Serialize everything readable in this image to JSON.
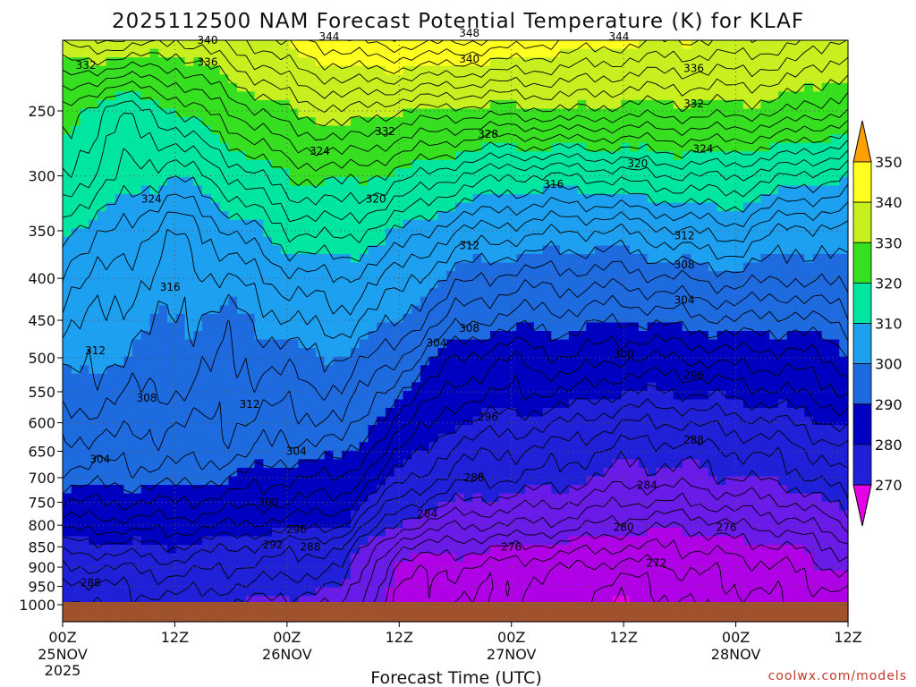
{
  "chart_data": {
    "type": "heatmap",
    "title": "2025112500 NAM Forecast Potential Temperature (K) for KLAF",
    "xlabel": "Forecast Time (UTC)",
    "ylabel": "",
    "credit": "coolwx.com/models",
    "y_axis": {
      "scale": "log-pressure",
      "ticks": [
        "250",
        "300",
        "350",
        "400",
        "450",
        "500",
        "550",
        "600",
        "650",
        "700",
        "750",
        "800",
        "850",
        "900",
        "950",
        "1000"
      ]
    },
    "x_axis": {
      "ticks": [
        {
          "hours": 0,
          "line1": "00Z",
          "line2": "25NOV",
          "line3": "2025"
        },
        {
          "hours": 12,
          "line1": "12Z",
          "line2": "",
          "line3": ""
        },
        {
          "hours": 24,
          "line1": "00Z",
          "line2": "26NOV",
          "line3": ""
        },
        {
          "hours": 36,
          "line1": "12Z",
          "line2": "",
          "line3": ""
        },
        {
          "hours": 48,
          "line1": "00Z",
          "line2": "27NOV",
          "line3": ""
        },
        {
          "hours": 60,
          "line1": "12Z",
          "line2": "",
          "line3": ""
        },
        {
          "hours": 72,
          "line1": "00Z",
          "line2": "28NOV",
          "line3": ""
        },
        {
          "hours": 84,
          "line1": "12Z",
          "line2": "",
          "line3": ""
        }
      ]
    },
    "colorbar": {
      "levels": [
        "270",
        "280",
        "290",
        "300",
        "310",
        "320",
        "330",
        "340",
        "350"
      ],
      "colors": [
        "#e600e6",
        "#b000e6",
        "#6a1be8",
        "#2020d8",
        "#0000c0",
        "#1e6be0",
        "#1ea0f0",
        "#00e6a0",
        "#36e020",
        "#c8f020",
        "#ffff20",
        "#ffa000"
      ]
    },
    "surface_color": "#a0522d",
    "field": {
      "description": "potential temperature (K) at pressure levels over forecast hours",
      "hours": [
        0,
        6,
        12,
        18,
        24,
        30,
        36,
        42,
        48,
        54,
        60,
        66,
        72,
        78,
        84
      ],
      "pressures": [
        200,
        250,
        300,
        350,
        400,
        450,
        500,
        550,
        600,
        650,
        700,
        750,
        800,
        850,
        900,
        950,
        1000
      ],
      "theta": [
        [
          338,
          340,
          337,
          340,
          344,
          347,
          349,
          348,
          347,
          345,
          344,
          343,
          343,
          342,
          338
        ],
        [
          328,
          322,
          326,
          330,
          334,
          336,
          334,
          333,
          333,
          334,
          333,
          333,
          333,
          332,
          330
        ],
        [
          324,
          320,
          318,
          322,
          326,
          327,
          325,
          322,
          320,
          320,
          321,
          322,
          322,
          320,
          318
        ],
        [
          318,
          316,
          312,
          316,
          320,
          321,
          318,
          314,
          313,
          312,
          312,
          314,
          315,
          311,
          312
        ],
        [
          315,
          313,
          311,
          312,
          315,
          316,
          313,
          309,
          307,
          307,
          307,
          308,
          309,
          308,
          309
        ],
        [
          313,
          311,
          310,
          309,
          312,
          313,
          310,
          305,
          303,
          303,
          302,
          303,
          304,
          303,
          305
        ],
        [
          311,
          310,
          309,
          308,
          309,
          310,
          306,
          300,
          298,
          300,
          298,
          298,
          299,
          299,
          301
        ],
        [
          310,
          308,
          308,
          307,
          307,
          308,
          302,
          297,
          296,
          296,
          294,
          294,
          295,
          296,
          298
        ],
        [
          307,
          307,
          306,
          306,
          305,
          306,
          299,
          294,
          293,
          292,
          290,
          290,
          291,
          292,
          295
        ],
        [
          305,
          305,
          305,
          305,
          303,
          303,
          296,
          291,
          290,
          289,
          287,
          287,
          288,
          289,
          292
        ],
        [
          303,
          303,
          303,
          302,
          300,
          300,
          293,
          289,
          288,
          287,
          285,
          285,
          286,
          287,
          290
        ],
        [
          300,
          300,
          300,
          299,
          298,
          297,
          289,
          286,
          285,
          284,
          282,
          282,
          283,
          284,
          287
        ],
        [
          297,
          297,
          297,
          296,
          295,
          294,
          285,
          282,
          282,
          281,
          279,
          278,
          280,
          281,
          284
        ],
        [
          293,
          293,
          294,
          292,
          291,
          290,
          280,
          279,
          278,
          277,
          276,
          276,
          277,
          278,
          281
        ],
        [
          290,
          290,
          291,
          290,
          289,
          288,
          277,
          276,
          275,
          274,
          273,
          274,
          275,
          276,
          279
        ],
        [
          287,
          288,
          289,
          288,
          287,
          286,
          276,
          275,
          274,
          273,
          271,
          273,
          274,
          275,
          277
        ],
        [
          285,
          287,
          287,
          286,
          285,
          284,
          276,
          274,
          274,
          273,
          270,
          272,
          273,
          274,
          275
        ]
      ]
    },
    "contour_labels": [
      {
        "text": "340",
        "hours": 15.5,
        "p": 205
      },
      {
        "text": "344",
        "hours": 28.5,
        "p": 203
      },
      {
        "text": "348",
        "hours": 43.5,
        "p": 201
      },
      {
        "text": "344",
        "hours": 59.5,
        "p": 203
      },
      {
        "text": "336",
        "hours": 15.5,
        "p": 218
      },
      {
        "text": "340",
        "hours": 43.5,
        "p": 216
      },
      {
        "text": "336",
        "hours": 67.5,
        "p": 222
      },
      {
        "text": "332",
        "hours": 2.5,
        "p": 220
      },
      {
        "text": "332",
        "hours": 67.5,
        "p": 245
      },
      {
        "text": "332",
        "hours": 34.5,
        "p": 265
      },
      {
        "text": "328",
        "hours": 45.5,
        "p": 267
      },
      {
        "text": "324",
        "hours": 27.5,
        "p": 280
      },
      {
        "text": "324",
        "hours": 68.5,
        "p": 278
      },
      {
        "text": "320",
        "hours": 61.5,
        "p": 290
      },
      {
        "text": "316",
        "hours": 52.5,
        "p": 307
      },
      {
        "text": "324",
        "hours": 9.5,
        "p": 320
      },
      {
        "text": "320",
        "hours": 33.5,
        "p": 320
      },
      {
        "text": "312",
        "hours": 66.5,
        "p": 355
      },
      {
        "text": "312",
        "hours": 43.5,
        "p": 365
      },
      {
        "text": "308",
        "hours": 66.5,
        "p": 385
      },
      {
        "text": "316",
        "hours": 11.5,
        "p": 410
      },
      {
        "text": "304",
        "hours": 66.5,
        "p": 425
      },
      {
        "text": "308",
        "hours": 43.5,
        "p": 460
      },
      {
        "text": "304",
        "hours": 40.0,
        "p": 480
      },
      {
        "text": "300",
        "hours": 60.0,
        "p": 495
      },
      {
        "text": "312",
        "hours": 3.5,
        "p": 490
      },
      {
        "text": "296",
        "hours": 67.5,
        "p": 525
      },
      {
        "text": "308",
        "hours": 9.0,
        "p": 560
      },
      {
        "text": "312",
        "hours": 20.0,
        "p": 570
      },
      {
        "text": "296",
        "hours": 45.5,
        "p": 590
      },
      {
        "text": "288",
        "hours": 67.5,
        "p": 630
      },
      {
        "text": "304",
        "hours": 4.0,
        "p": 665
      },
      {
        "text": "304",
        "hours": 25.0,
        "p": 650
      },
      {
        "text": "288",
        "hours": 44.0,
        "p": 700
      },
      {
        "text": "284",
        "hours": 62.5,
        "p": 715
      },
      {
        "text": "300",
        "hours": 22.0,
        "p": 750
      },
      {
        "text": "284",
        "hours": 39.0,
        "p": 775
      },
      {
        "text": "296",
        "hours": 25.0,
        "p": 810
      },
      {
        "text": "280",
        "hours": 60.0,
        "p": 805
      },
      {
        "text": "276",
        "hours": 71.0,
        "p": 805
      },
      {
        "text": "292",
        "hours": 22.5,
        "p": 845
      },
      {
        "text": "288",
        "hours": 26.5,
        "p": 850
      },
      {
        "text": "276",
        "hours": 48.0,
        "p": 850
      },
      {
        "text": "272",
        "hours": 63.5,
        "p": 890
      },
      {
        "text": "288",
        "hours": 3.0,
        "p": 940
      }
    ]
  }
}
